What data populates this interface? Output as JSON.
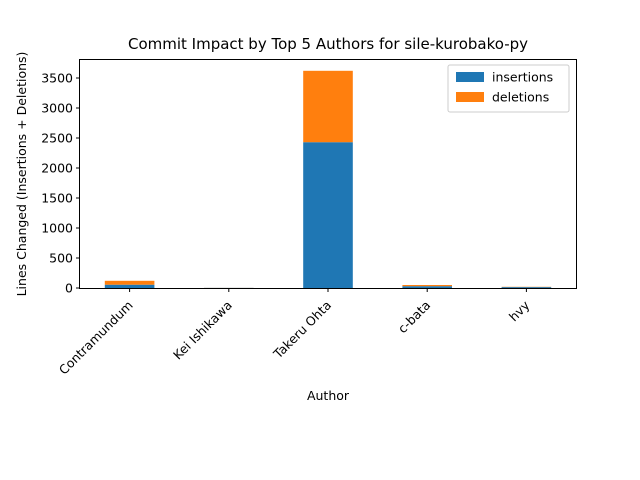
{
  "chart_data": {
    "type": "bar",
    "stacked": true,
    "title": "Commit Impact by Top 5 Authors for sile-kurobako-py",
    "xlabel": "Author",
    "ylabel": "Lines Changed (Insertions + Deletions)",
    "categories": [
      "Contramundum",
      "Kei Ishikawa",
      "Takeru Ohta",
      "c-bata",
      "hvy"
    ],
    "series": [
      {
        "name": "insertions",
        "color": "#1f77b4",
        "values": [
          55,
          2,
          2430,
          30,
          15
        ]
      },
      {
        "name": "deletions",
        "color": "#ff7f0e",
        "values": [
          65,
          1,
          1190,
          20,
          5
        ]
      }
    ],
    "ylim": [
      0,
      3800
    ],
    "yticks": [
      0,
      500,
      1000,
      1500,
      2000,
      2500,
      3000,
      3500
    ],
    "grid": false,
    "legend_position": "top-right"
  }
}
